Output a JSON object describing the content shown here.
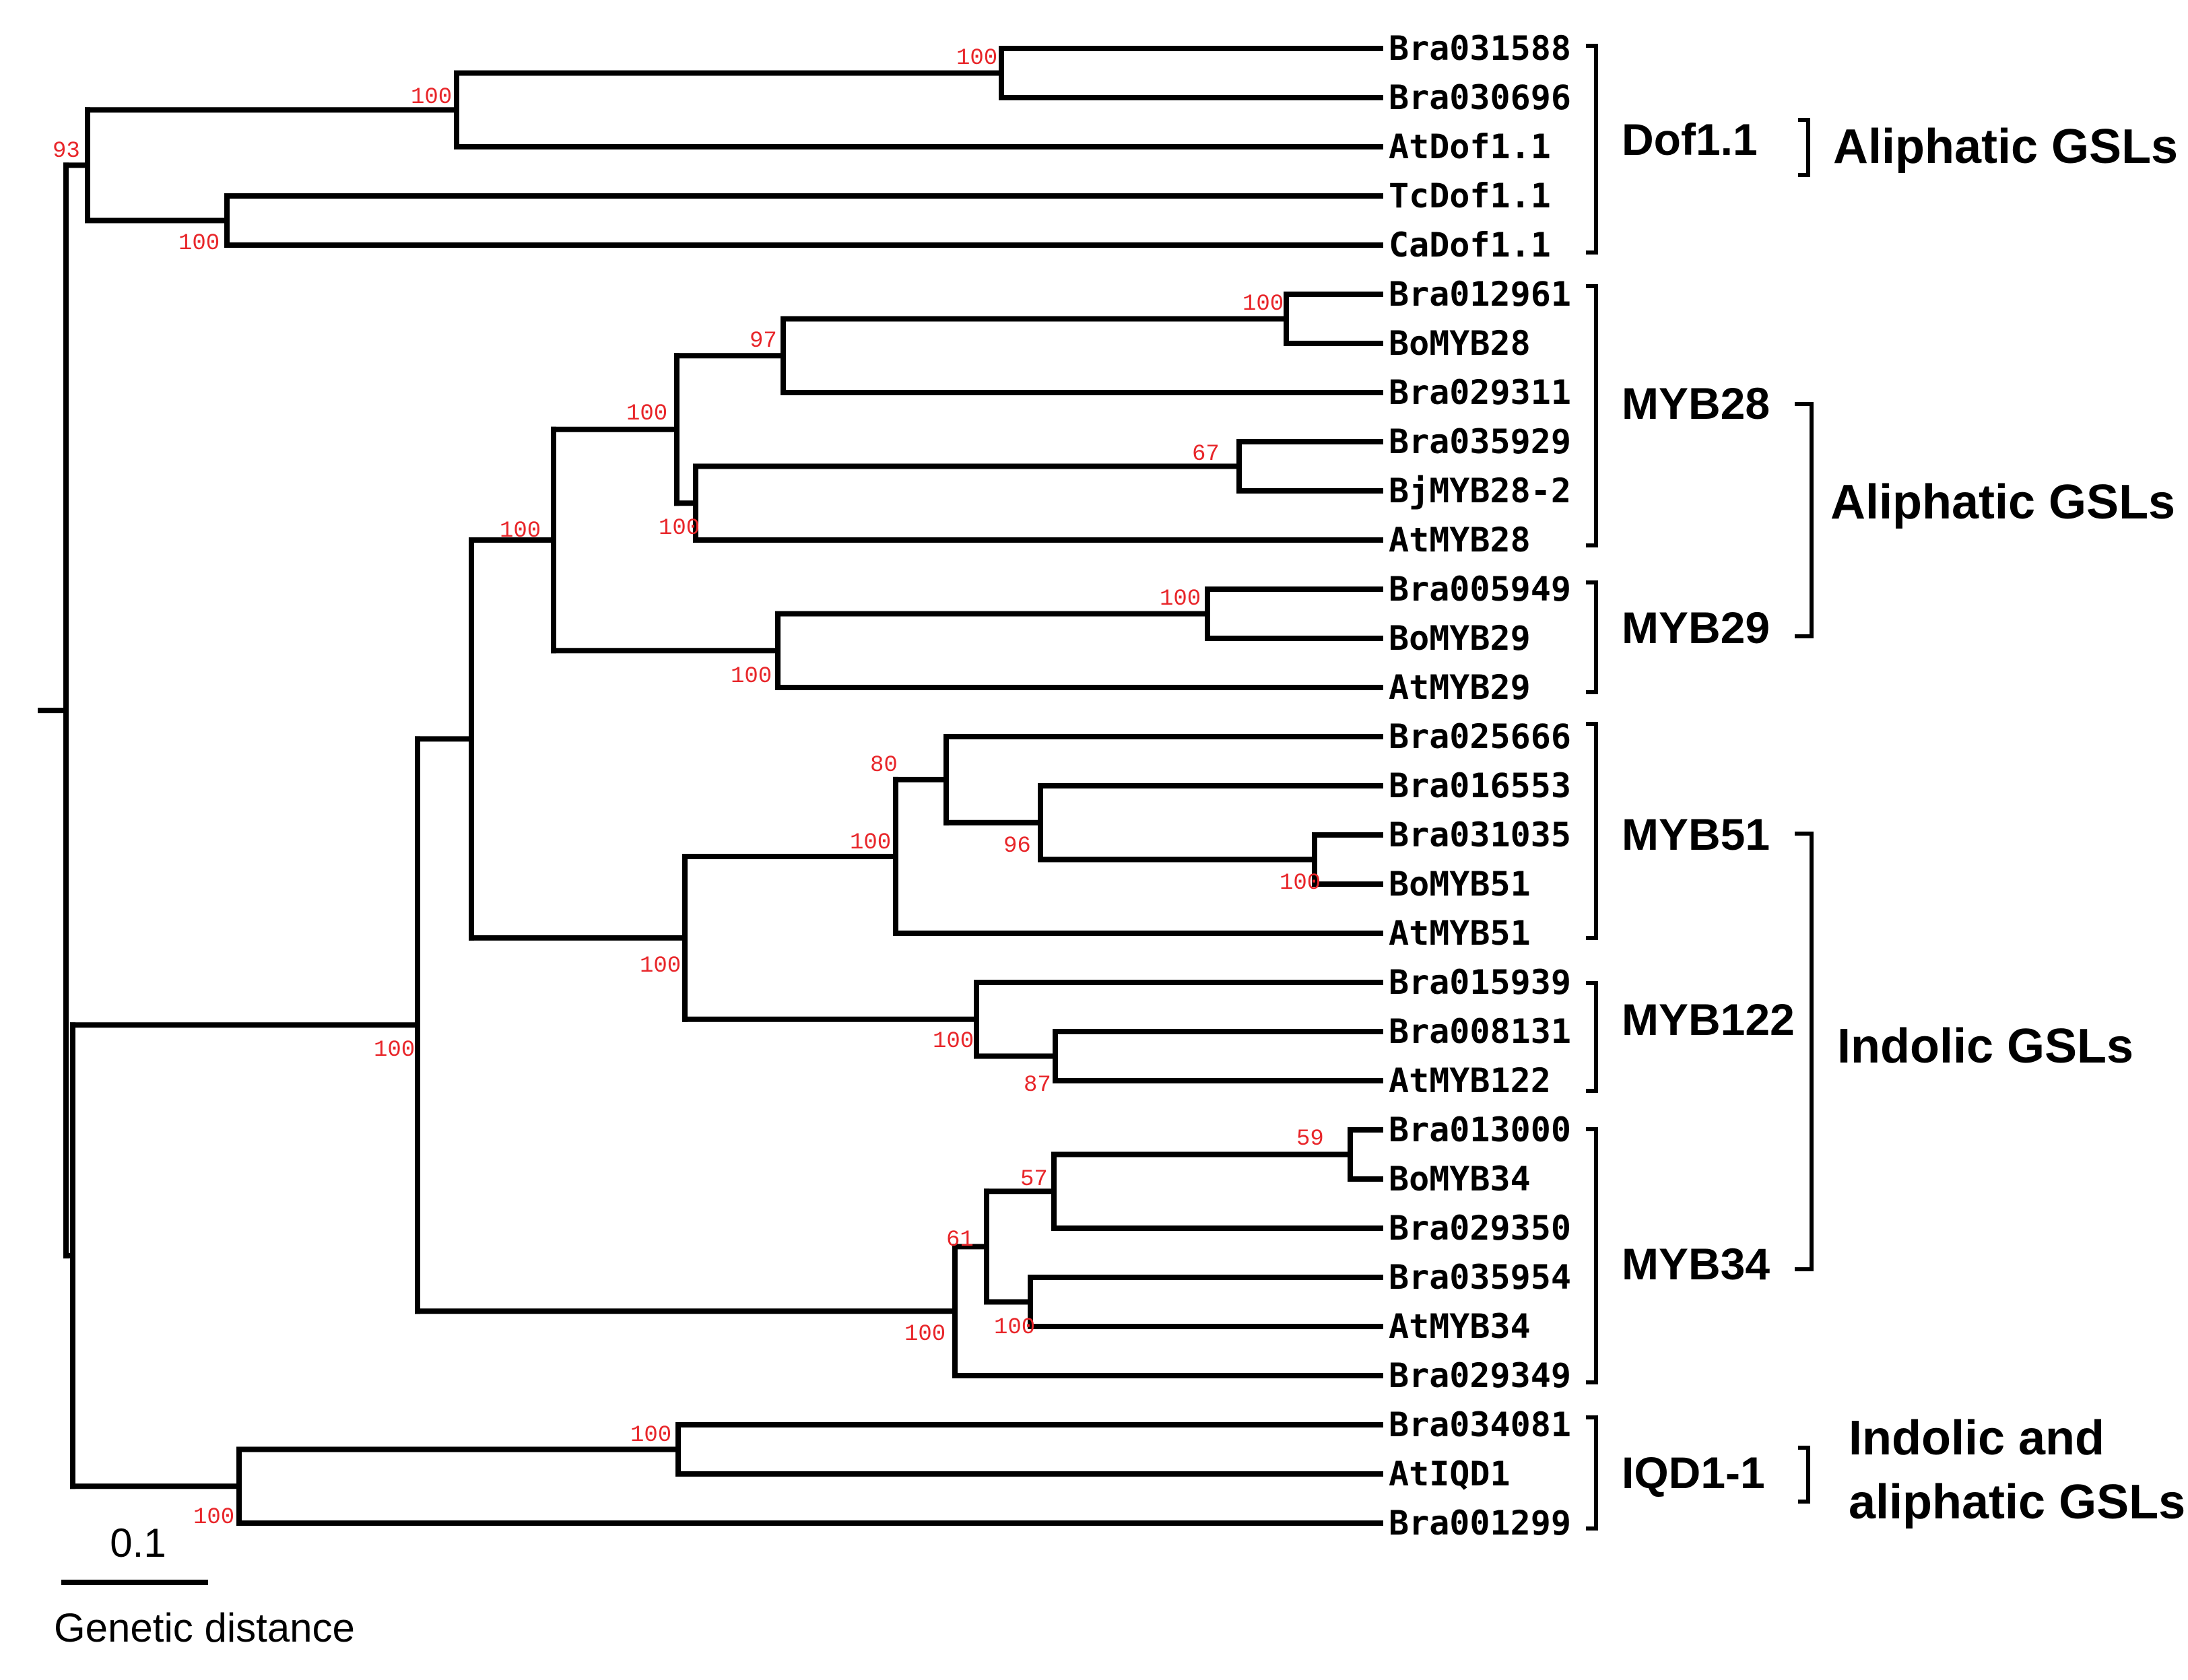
{
  "tree": {
    "leaves": [
      "Bra031588",
      "Bra030696",
      "AtDof1.1",
      "TcDof1.1",
      "CaDof1.1",
      "Bra012961",
      "BoMYB28",
      "Bra029311",
      "Bra035929",
      "BjMYB28-2",
      "AtMYB28",
      "Bra005949",
      "BoMYB29",
      "AtMYB29",
      "Bra025666",
      "Bra016553",
      "Bra031035",
      "BoMYB51",
      "AtMYB51",
      "Bra015939",
      "Bra008131",
      "AtMYB122",
      "Bra013000",
      "BoMYB34",
      "Bra029350",
      "Bra035954",
      "AtMYB34",
      "Bra029349",
      "Bra034081",
      "AtIQD1",
      "Bra001299"
    ],
    "bootstrap_values": [
      "100",
      "100",
      "93",
      "100",
      "100",
      "97",
      "100",
      "100",
      "67",
      "100",
      "100",
      "100",
      "80",
      "96",
      "100",
      "100",
      "100",
      "100",
      "87",
      "100",
      "59",
      "57",
      "61",
      "100",
      "100",
      "100",
      "100"
    ]
  },
  "groups": [
    "Dof1.1",
    "MYB28",
    "MYB29",
    "MYB51",
    "MYB122",
    "MYB34",
    "IQD1-1"
  ],
  "functions": {
    "dof": "Aliphatic GSLs",
    "myb28_29": "Aliphatic GSLs",
    "indolic": "Indolic GSLs",
    "iqd_line1": "Indolic and",
    "iqd_line2": "aliphatic GSLs"
  },
  "scale": {
    "value": "0.1",
    "label": "Genetic distance"
  },
  "colors": {
    "lines": "#000000",
    "bootstrap": "#e8262a"
  }
}
